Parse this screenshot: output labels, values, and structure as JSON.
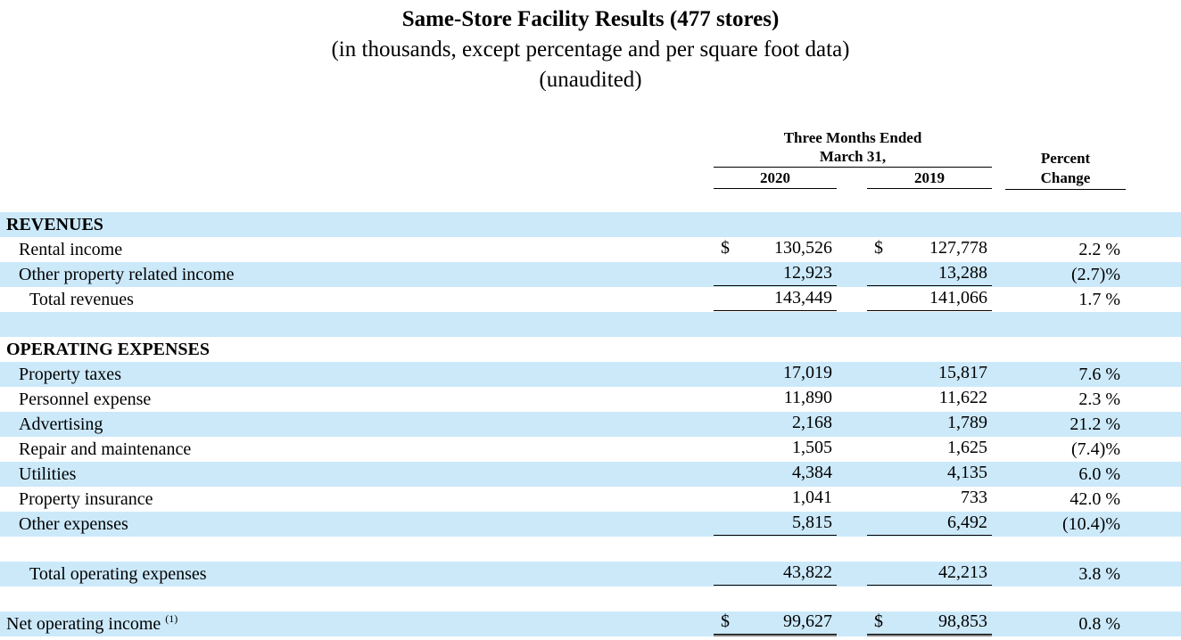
{
  "title": "Same-Store Facility Results (477 stores)",
  "subtitle": "(in thousands, except percentage and per square foot data)",
  "unaudited": "(unaudited)",
  "colors": {
    "stripe_blue": "#cce9fa",
    "rule_black": "#000000",
    "double_rule_gray": "#7f7f7f",
    "text": "#000000"
  },
  "column_headers": {
    "period_line1": "Three Months Ended",
    "period_line2": "March 31,",
    "year_2020": "2020",
    "year_2019": "2019",
    "percent_line1": "Percent",
    "percent_line2": "Change"
  },
  "table": {
    "rows": [
      {
        "label": "REVENUES",
        "style": "section",
        "indent": 0,
        "bg": "blue"
      },
      {
        "label": "Rental income",
        "style": "item",
        "indent": 1,
        "bg": "white",
        "dollar": true,
        "v2020": "130,526",
        "v2019": "127,778",
        "pct": "2.2 %"
      },
      {
        "label": "Other property related income",
        "style": "item",
        "indent": 1,
        "bg": "blue",
        "v2020": "12,923",
        "v2019": "13,288",
        "pct": "(2.7)%",
        "underline": "single"
      },
      {
        "label": "Total revenues",
        "style": "total",
        "indent": 2,
        "bg": "white",
        "v2020": "143,449",
        "v2019": "141,066",
        "pct": "1.7 %",
        "underline": "single"
      },
      {
        "blank": true,
        "bg": "blue"
      },
      {
        "label": "OPERATING EXPENSES",
        "style": "section",
        "indent": 0,
        "bg": "white"
      },
      {
        "label": "Property taxes",
        "style": "item",
        "indent": 1,
        "bg": "blue",
        "v2020": "17,019",
        "v2019": "15,817",
        "pct": "7.6 %"
      },
      {
        "label": "Personnel expense",
        "style": "item",
        "indent": 1,
        "bg": "white",
        "v2020": "11,890",
        "v2019": "11,622",
        "pct": "2.3 %"
      },
      {
        "label": "Advertising",
        "style": "item",
        "indent": 1,
        "bg": "blue",
        "v2020": "2,168",
        "v2019": "1,789",
        "pct": "21.2 %"
      },
      {
        "label": "Repair and maintenance",
        "style": "item",
        "indent": 1,
        "bg": "white",
        "v2020": "1,505",
        "v2019": "1,625",
        "pct": "(7.4)%"
      },
      {
        "label": "Utilities",
        "style": "item",
        "indent": 1,
        "bg": "blue",
        "v2020": "4,384",
        "v2019": "4,135",
        "pct": "6.0 %"
      },
      {
        "label": "Property insurance",
        "style": "item",
        "indent": 1,
        "bg": "white",
        "v2020": "1,041",
        "v2019": "733",
        "pct": "42.0 %"
      },
      {
        "label": "Other expenses",
        "style": "item",
        "indent": 1,
        "bg": "blue",
        "v2020": "5,815",
        "v2019": "6,492",
        "pct": "(10.4)%",
        "underline": "single"
      },
      {
        "blank": true,
        "bg": "white"
      },
      {
        "label": "Total operating expenses",
        "style": "total",
        "indent": 2,
        "bg": "blue",
        "v2020": "43,822",
        "v2019": "42,213",
        "pct": "3.8 %",
        "underline": "single"
      },
      {
        "blank": true,
        "bg": "white"
      },
      {
        "label": "Net operating income",
        "sup": "(1)",
        "style": "plain",
        "indent": 0,
        "bg": "blue",
        "dollar": true,
        "v2020": "99,627",
        "v2019": "98,853",
        "pct": "0.8 %",
        "underline": "double"
      }
    ],
    "dollar_symbol": "$"
  }
}
